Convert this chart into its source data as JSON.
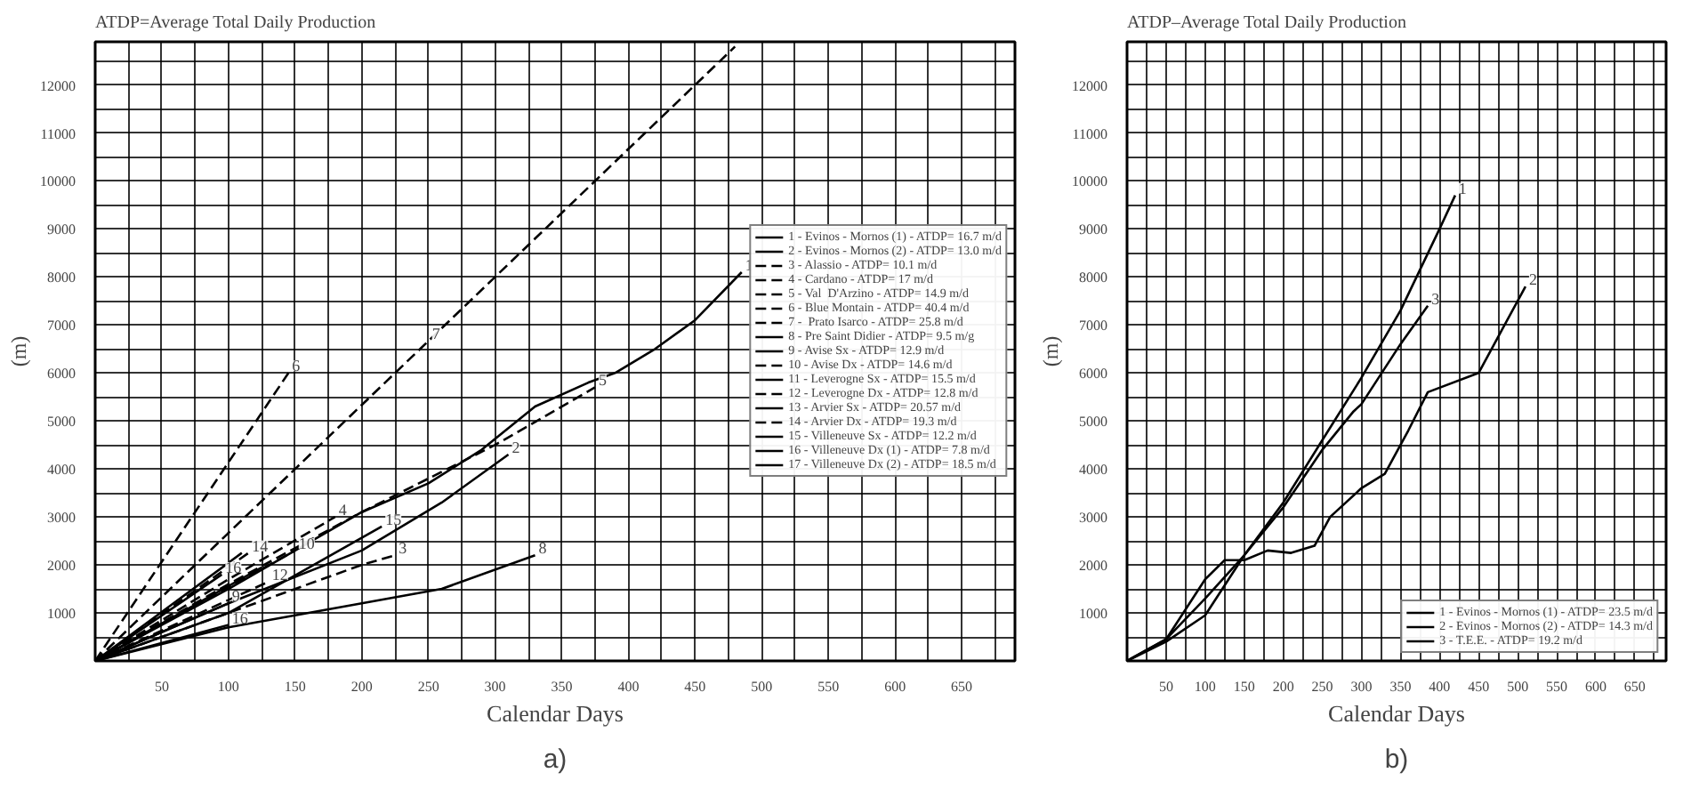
{
  "chart_data": [
    {
      "type": "line",
      "title": "ATDP=Average Total Daily Production",
      "xlabel": "Calendar Days",
      "ylabel": "(m)",
      "xlim": [
        0,
        690
      ],
      "ylim": [
        0,
        12900
      ],
      "xticks": [
        {
          "value": 25,
          "label": null
        },
        50,
        {
          "value": 75,
          "label": null
        },
        100,
        {
          "value": 125,
          "label": null
        },
        150,
        {
          "value": 175,
          "label": null
        },
        200,
        {
          "value": 225,
          "label": null
        },
        250,
        {
          "value": 275,
          "label": null
        },
        300,
        {
          "value": 325,
          "label": null
        },
        350,
        {
          "value": 375,
          "label": null
        },
        400,
        {
          "value": 425,
          "label": null
        },
        450,
        {
          "value": 475,
          "label": null
        },
        500,
        {
          "value": 525,
          "label": null
        },
        550,
        {
          "value": 575,
          "label": null
        },
        600,
        {
          "value": 625,
          "label": null
        },
        650,
        {
          "value": 675,
          "label": null
        }
      ],
      "yticks": [
        {
          "value": 500,
          "label": null
        },
        1000,
        {
          "value": 1500,
          "label": null
        },
        2000,
        {
          "value": 2500,
          "label": null
        },
        3000,
        {
          "value": 3500,
          "label": null
        },
        4000,
        {
          "value": 4500,
          "label": null
        },
        5000,
        {
          "value": 5500,
          "label": null
        },
        6000,
        {
          "value": 6500,
          "label": null
        },
        7000,
        {
          "value": 7500,
          "label": null
        },
        8000,
        {
          "value": 8500,
          "label": null
        },
        9000,
        {
          "value": 9500,
          "label": null
        },
        10000,
        {
          "value": 10500,
          "label": null
        },
        11000,
        {
          "value": 11500,
          "label": null
        },
        12000,
        {
          "value": 12500,
          "label": null
        }
      ],
      "grid": true,
      "legend": "right",
      "series": [
        {
          "name": "1 - Evinos - Mornos (1) - ATDP= 16.7 m/d",
          "color": "#000000",
          "line_style": "solid",
          "x": [
            0,
            100,
            200,
            250,
            290,
            330,
            370,
            390,
            420,
            450,
            485
          ],
          "values": [
            0,
            1500,
            3100,
            3700,
            4400,
            5300,
            5800,
            6000,
            6500,
            7100,
            8100
          ]
        },
        {
          "name": "2 - Evinos - Mornos (2) - ATDP= 13.0 m/d",
          "color": "#000000",
          "line_style": "solid",
          "x": [
            0,
            100,
            200,
            260,
            310
          ],
          "values": [
            0,
            1200,
            2300,
            3300,
            4300
          ]
        },
        {
          "name": "3 - Alassio - ATDP= 10.1 m/d",
          "color": "#000000",
          "line_style": "dashed",
          "x": [
            0,
            100,
            200,
            225
          ],
          "values": [
            0,
            1000,
            2000,
            2200
          ]
        },
        {
          "name": "4 - Cardano - ATDP= 17 m/d",
          "color": "#000000",
          "line_style": "dashed",
          "x": [
            0,
            100,
            180
          ],
          "values": [
            0,
            1700,
            3000
          ]
        },
        {
          "name": "5 - Val  D'Arzino - ATDP= 14.9 m/d",
          "color": "#000000",
          "line_style": "dashed",
          "x": [
            0,
            100,
            200,
            300,
            375
          ],
          "values": [
            0,
            1600,
            3100,
            4500,
            5700
          ]
        },
        {
          "name": "6 - Blue Montain - ATDP= 40.4 m/d",
          "color": "#000000",
          "line_style": "dashed",
          "x": [
            0,
            145
          ],
          "values": [
            0,
            6000
          ]
        },
        {
          "name": "7 -  Prato Isarco - ATDP= 25.8 m/d",
          "color": "#000000",
          "line_style": "dashed",
          "x": [
            0,
            480
          ],
          "values": [
            0,
            12800
          ]
        },
        {
          "name": "8 - Pre Saint Didier - ATDP= 9.5 m/g",
          "color": "#000000",
          "line_style": "solid",
          "x": [
            0,
            100,
            200,
            260,
            330
          ],
          "values": [
            0,
            700,
            1200,
            1500,
            2200
          ]
        },
        {
          "name": "9 - Avise Sx - ATDP= 12.9 m/d",
          "color": "#000000",
          "line_style": "solid",
          "x": [
            0,
            100
          ],
          "values": [
            0,
            1200
          ]
        },
        {
          "name": "10 - Avise Dx - ATDP= 14.6 m/d",
          "color": "#000000",
          "line_style": "dashed",
          "x": [
            0,
            150
          ],
          "values": [
            0,
            2300
          ]
        },
        {
          "name": "11 - Leverogne Sx - ATDP= 15.5 m/d",
          "color": "#000000",
          "line_style": "solid",
          "x": [
            0,
            125
          ],
          "values": [
            0,
            1950
          ]
        },
        {
          "name": "12 - Leverogne Dx - ATDP= 12.8 m/d",
          "color": "#000000",
          "line_style": "dashed",
          "x": [
            0,
            130
          ],
          "values": [
            0,
            1650
          ]
        },
        {
          "name": "13 - Arvier Sx - ATDP= 20.57 m/d",
          "color": "#000000",
          "line_style": "solid",
          "x": [
            0,
            110
          ],
          "values": [
            0,
            2250
          ]
        },
        {
          "name": "14 - Arvier Dx - ATDP= 19.3 m/d",
          "color": "#000000",
          "line_style": "dashed",
          "x": [
            0,
            115
          ],
          "values": [
            0,
            2250
          ]
        },
        {
          "name": "15 - Villeneuve Sx - ATDP= 12.2 m/d",
          "color": "#000000",
          "line_style": "solid",
          "x": [
            0,
            100,
            215
          ],
          "values": [
            0,
            1000,
            2800
          ]
        },
        {
          "name": "16 - Villeneuve Dx (1) - ATDP= 7.8 m/d",
          "color": "#000000",
          "line_style": "solid",
          "x": [
            0,
            100
          ],
          "values": [
            0,
            750
          ]
        },
        {
          "name": "17 - Villeneuve Dx (2) - ATDP= 18.5 m/d",
          "color": "#000000",
          "line_style": "solid",
          "x": [
            0,
            95
          ],
          "values": [
            0,
            1800
          ]
        }
      ],
      "annotations": [
        {
          "text": "1",
          "x": 485,
          "y": 8100
        },
        {
          "text": "2",
          "x": 310,
          "y": 4300
        },
        {
          "text": "3",
          "x": 225,
          "y": 2200
        },
        {
          "text": "4",
          "x": 180,
          "y": 3000
        },
        {
          "text": "5",
          "x": 375,
          "y": 5700
        },
        {
          "text": "6",
          "x": 145,
          "y": 6000
        },
        {
          "text": "7",
          "x": 250,
          "y": 6667
        },
        {
          "text": "8",
          "x": 330,
          "y": 2200
        },
        {
          "text": "9",
          "x": 100,
          "y": 1200
        },
        {
          "text": "10",
          "x": 150,
          "y": 2300
        },
        {
          "text": "12",
          "x": 130,
          "y": 1650
        },
        {
          "text": "14",
          "x": 115,
          "y": 2250
        },
        {
          "text": "15",
          "x": 215,
          "y": 2800
        },
        {
          "text": "16",
          "x": 95,
          "y": 1800
        },
        {
          "text": "16",
          "x": 100,
          "y": 750
        },
        "a)"
      ]
    },
    {
      "type": "line",
      "title": "ATDP–Average Total Daily Production",
      "xlabel": "Calendar Days",
      "ylabel": "(m)",
      "xlim": [
        0,
        690
      ],
      "ylim": [
        0,
        12900
      ],
      "xticks": [
        {
          "value": 25,
          "label": null
        },
        50,
        {
          "value": 75,
          "label": null
        },
        100,
        {
          "value": 125,
          "label": null
        },
        150,
        {
          "value": 175,
          "label": null
        },
        200,
        {
          "value": 225,
          "label": null
        },
        250,
        {
          "value": 275,
          "label": null
        },
        300,
        {
          "value": 325,
          "label": null
        },
        350,
        {
          "value": 375,
          "label": null
        },
        400,
        {
          "value": 425,
          "label": null
        },
        450,
        {
          "value": 475,
          "label": null
        },
        500,
        {
          "value": 525,
          "label": null
        },
        550,
        {
          "value": 575,
          "label": null
        },
        600,
        {
          "value": 625,
          "label": null
        },
        650,
        {
          "value": 675,
          "label": null
        }
      ],
      "yticks": [
        {
          "value": 500,
          "label": null
        },
        1000,
        {
          "value": 1500,
          "label": null
        },
        2000,
        {
          "value": 2500,
          "label": null
        },
        3000,
        {
          "value": 3500,
          "label": null
        },
        4000,
        {
          "value": 4500,
          "label": null
        },
        5000,
        {
          "value": 5500,
          "label": null
        },
        6000,
        {
          "value": 6500,
          "label": null
        },
        7000,
        {
          "value": 7500,
          "label": null
        },
        8000,
        {
          "value": 8500,
          "label": null
        },
        9000,
        {
          "value": 9500,
          "label": null
        },
        10000,
        {
          "value": 10500,
          "label": null
        },
        11000,
        {
          "value": 11500,
          "label": null
        },
        12000,
        {
          "value": 12500,
          "label": null
        }
      ],
      "grid": true,
      "legend": "bottom right",
      "line_style": "solid",
      "series": [
        {
          "name": "1 - Evinos - Mornos (1) - ATDP= 23.5 m/d",
          "color": "#000000",
          "x": [
            0,
            50,
            100,
            150,
            200,
            250,
            300,
            350,
            400,
            420
          ],
          "values": [
            0,
            450,
            1300,
            2200,
            3300,
            4600,
            5900,
            7300,
            9000,
            9700
          ]
        },
        {
          "name": "2 - Evinos - Mornos (2) - ATDP= 14.3 m/d",
          "color": "#000000",
          "x": [
            0,
            50,
            100,
            125,
            150,
            180,
            210,
            240,
            260,
            300,
            330,
            360,
            385,
            450,
            480,
            510
          ],
          "values": [
            0,
            450,
            1700,
            2100,
            2100,
            2300,
            2250,
            2400,
            3000,
            3600,
            3900,
            4800,
            5600,
            6000,
            6900,
            7800
          ]
        },
        {
          "name": "3 - T.E.E. - ATDP= 19.2 m/d",
          "color": "#000000",
          "x": [
            0,
            50,
            100,
            150,
            200,
            250,
            290,
            300,
            350,
            385
          ],
          "values": [
            0,
            400,
            950,
            2200,
            3200,
            4400,
            5200,
            5350,
            6600,
            7400
          ]
        }
      ],
      "annotations": [
        {
          "text": "1",
          "x": 420,
          "y": 9700
        },
        {
          "text": "2",
          "x": 510,
          "y": 7800
        },
        {
          "text": "3",
          "x": 385,
          "y": 7400
        },
        "b)"
      ]
    }
  ]
}
